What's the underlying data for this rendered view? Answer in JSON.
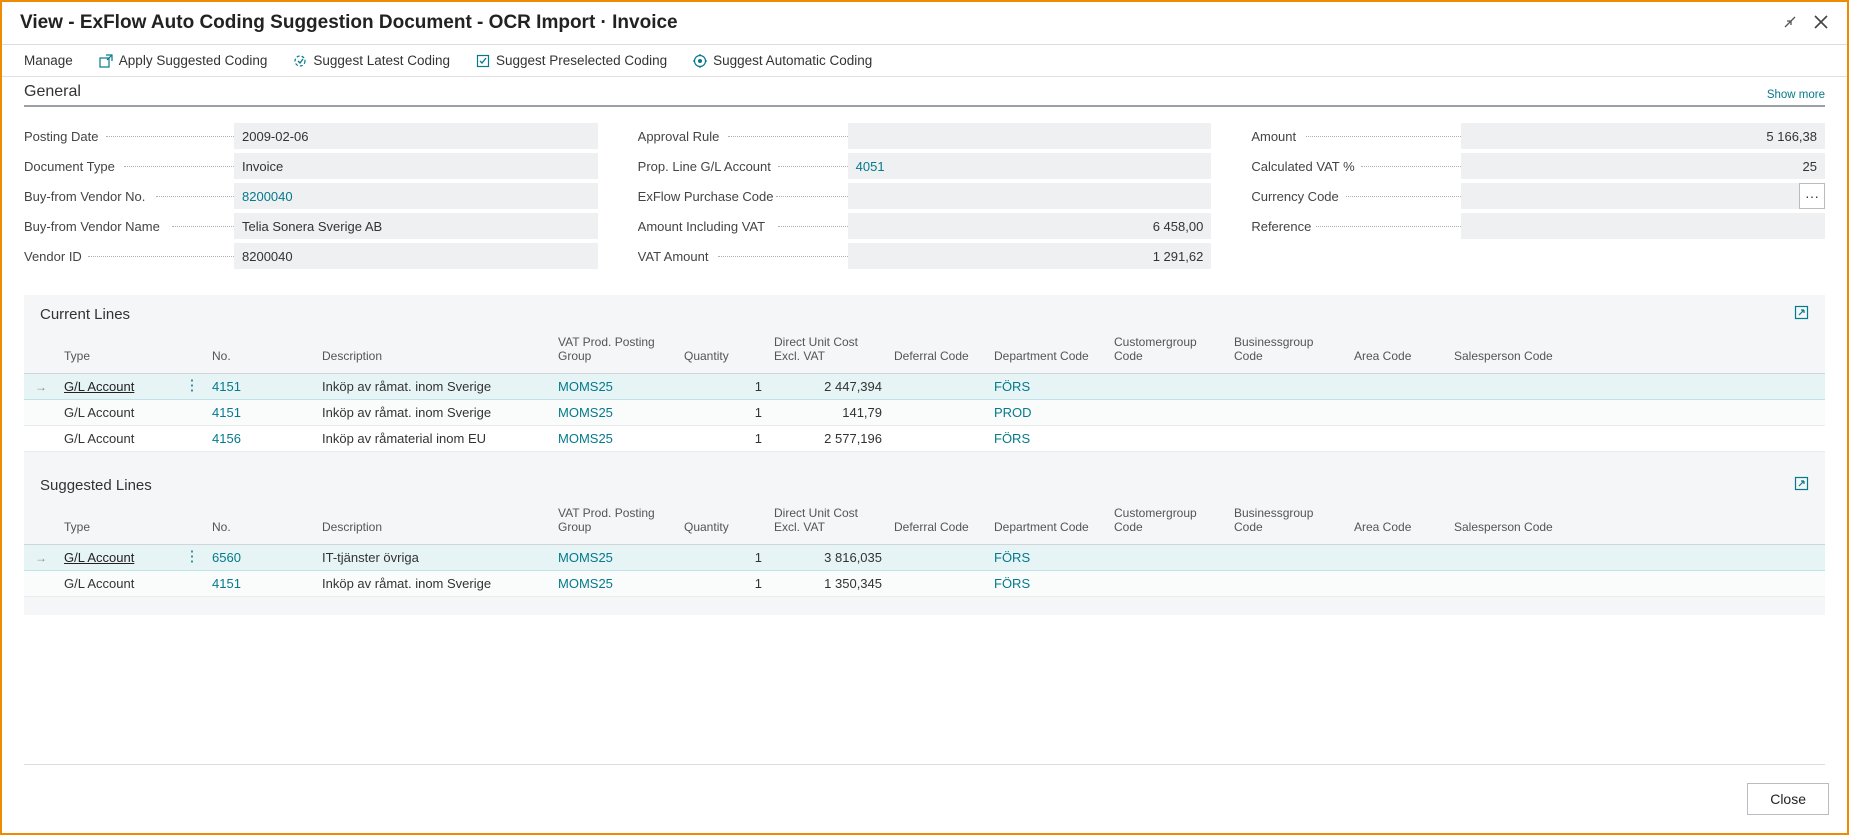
{
  "window": {
    "title": "View - ExFlow Auto Coding Suggestion Document - OCR Import · Invoice"
  },
  "toolbar": {
    "manage": "Manage",
    "apply": "Apply Suggested Coding",
    "latest": "Suggest Latest Coding",
    "preselected": "Suggest Preselected Coding",
    "automatic": "Suggest Automatic Coding"
  },
  "general": {
    "title": "General",
    "show_more": "Show more",
    "labels": {
      "posting_date": "Posting Date",
      "document_type": "Document Type",
      "buy_from_vendor_no": "Buy-from Vendor No.",
      "buy_from_vendor_name": "Buy-from Vendor Name",
      "vendor_id": "Vendor ID",
      "approval_rule": "Approval Rule",
      "prop_line_gl": "Prop. Line G/L Account",
      "exflow_purchase_code": "ExFlow Purchase Code",
      "amount_incl_vat": "Amount Including VAT",
      "vat_amount": "VAT Amount",
      "amount": "Amount",
      "calc_vat": "Calculated VAT %",
      "currency_code": "Currency Code",
      "reference": "Reference"
    },
    "values": {
      "posting_date": "2009-02-06",
      "document_type": "Invoice",
      "buy_from_vendor_no": "8200040",
      "buy_from_vendor_name": "Telia Sonera Sverige AB",
      "vendor_id": "8200040",
      "approval_rule": "",
      "prop_line_gl": "4051",
      "exflow_purchase_code": "",
      "amount_incl_vat": "6 458,00",
      "vat_amount": "1 291,62",
      "amount": "5 166,38",
      "calc_vat": "25",
      "currency_code": "",
      "reference": ""
    }
  },
  "columns": {
    "type": "Type",
    "no": "No.",
    "description": "Description",
    "vat_group": "VAT Prod. Posting Group",
    "quantity": "Quantity",
    "unit_cost": "Direct Unit Cost Excl. VAT",
    "deferral": "Deferral Code",
    "department": "Department Code",
    "customergroup": "Customergroup Code",
    "businessgroup": "Businessgroup Code",
    "area": "Area Code",
    "salesperson": "Salesperson Code"
  },
  "current": {
    "title": "Current Lines",
    "rows": [
      {
        "type": "G/L Account",
        "no": "4151",
        "desc": "Inköp av råmat. inom Sverige",
        "vat": "MOMS25",
        "qty": "1",
        "cost": "2 447,394",
        "dept": "FÖRS",
        "selected": true
      },
      {
        "type": "G/L Account",
        "no": "4151",
        "desc": "Inköp av råmat. inom Sverige",
        "vat": "MOMS25",
        "qty": "1",
        "cost": "141,79",
        "dept": "PROD"
      },
      {
        "type": "G/L Account",
        "no": "4156",
        "desc": "Inköp av råmaterial inom EU",
        "vat": "MOMS25",
        "qty": "1",
        "cost": "2 577,196",
        "dept": "FÖRS"
      }
    ]
  },
  "suggested": {
    "title": "Suggested Lines",
    "rows": [
      {
        "type": "G/L Account",
        "no": "6560",
        "desc": "IT-tjänster övriga",
        "vat": "MOMS25",
        "qty": "1",
        "cost": "3 816,035",
        "dept": "FÖRS",
        "selected": true
      },
      {
        "type": "G/L Account",
        "no": "4151",
        "desc": "Inköp av råmat. inom Sverige",
        "vat": "MOMS25",
        "qty": "1",
        "cost": "1 350,345",
        "dept": "FÖRS"
      }
    ]
  },
  "footer": {
    "close": "Close",
    "ellipsis": "···"
  },
  "colors": {
    "accent": "#047a8c",
    "border": "#ef8b00"
  }
}
